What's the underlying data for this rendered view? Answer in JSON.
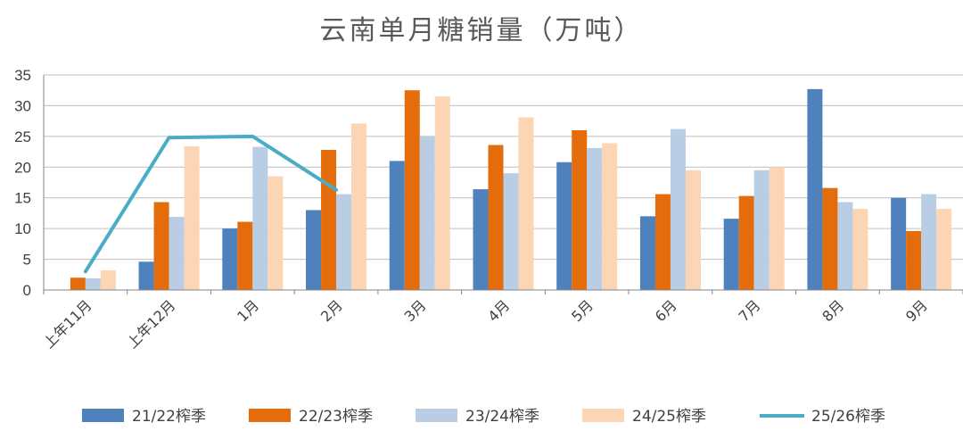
{
  "chart_data": {
    "type": "bar",
    "title": "云南单月糖销量（万吨）",
    "xlabel": "",
    "ylabel": "",
    "ylim": [
      0,
      35
    ],
    "yticks": [
      0,
      5,
      10,
      15,
      20,
      25,
      30,
      35
    ],
    "grid": true,
    "legend_position": "bottom",
    "categories": [
      "上年11月",
      "上年12月",
      "1月",
      "2月",
      "3月",
      "4月",
      "5月",
      "6月",
      "7月",
      "8月",
      "9月"
    ],
    "series": [
      {
        "name": "21/22榨季",
        "kind": "bar",
        "color": "#4f81bd",
        "values": [
          0,
          4.6,
          10,
          13,
          21,
          16.4,
          20.8,
          12,
          11.6,
          32.7,
          15
        ]
      },
      {
        "name": "22/23榨季",
        "kind": "bar",
        "color": "#e46c0a",
        "values": [
          2,
          14.3,
          11.1,
          22.8,
          32.5,
          23.6,
          26,
          15.6,
          15.3,
          16.6,
          9.6
        ]
      },
      {
        "name": "23/24榨季",
        "kind": "bar",
        "color": "#b9cde5",
        "values": [
          1.9,
          11.9,
          23.3,
          15.6,
          25,
          19,
          23.1,
          26.2,
          19.5,
          14.3,
          15.6
        ]
      },
      {
        "name": "24/25榨季",
        "kind": "bar",
        "color": "#fcd5b5",
        "values": [
          3.2,
          23.4,
          18.5,
          27.1,
          31.5,
          28.1,
          23.9,
          19.5,
          20,
          13.2,
          13.2
        ]
      },
      {
        "name": "25/26榨季",
        "kind": "line",
        "color": "#4bacc6",
        "values": [
          3,
          24.8,
          25,
          16.3,
          null,
          null,
          null,
          null,
          null,
          null,
          null
        ]
      }
    ]
  }
}
